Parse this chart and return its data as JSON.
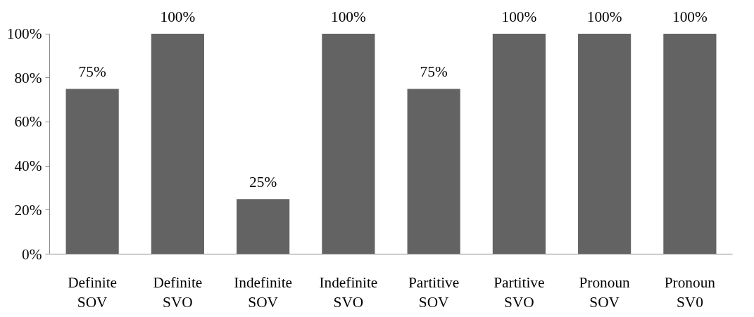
{
  "chart_data": {
    "type": "bar",
    "categories": [
      "Definite\nSOV",
      "Definite\nSVO",
      "Indefinite\nSOV",
      "Indefinite\nSVO",
      "Partitive\nSOV",
      "Partitive\nSVO",
      "Pronoun\nSOV",
      "Pronoun\nSV0"
    ],
    "values": [
      75,
      100,
      25,
      100,
      75,
      100,
      100,
      100
    ],
    "value_labels": [
      "75%",
      "100%",
      "25%",
      "100%",
      "75%",
      "100%",
      "100%",
      "100%"
    ],
    "color": "#636363",
    "ylim": [
      0,
      100
    ],
    "yticks": [
      {
        "value": 0,
        "label": "0%"
      },
      {
        "value": 20,
        "label": "20%"
      },
      {
        "value": 40,
        "label": "40%"
      },
      {
        "value": 60,
        "label": "60%"
      },
      {
        "value": 80,
        "label": "80%"
      },
      {
        "value": 100,
        "label": "100%"
      }
    ],
    "grid": false
  }
}
